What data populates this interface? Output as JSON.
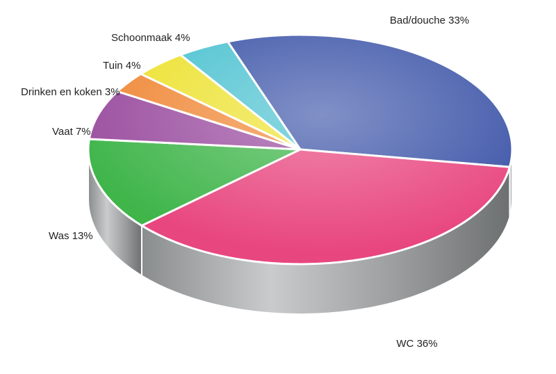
{
  "chart_data": {
    "type": "pie",
    "categories": [
      "Bad/douche",
      "WC",
      "Was",
      "Vaat",
      "Drinken en koken",
      "Tuin",
      "Schoonmaak"
    ],
    "values": [
      33,
      36,
      13,
      7,
      3,
      4,
      4
    ],
    "value_labels": [
      "33%",
      "36%",
      "13%",
      "7%",
      "3%",
      "4%",
      "4%"
    ],
    "colors": [
      "#3d55a8",
      "#e8467e",
      "#3fb54a",
      "#9b4fa0",
      "#f08a3a",
      "#ede232",
      "#4cc2d0"
    ]
  }
}
